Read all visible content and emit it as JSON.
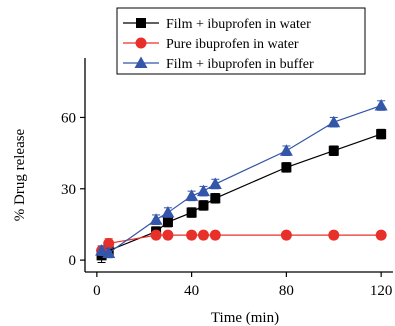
{
  "chart_data": {
    "type": "line",
    "title": "",
    "xlabel": "Time (min)",
    "ylabel": "% Drug release",
    "xlim": [
      -5,
      125
    ],
    "ylim": [
      -5,
      85
    ],
    "xticks": [
      0,
      40,
      80,
      120
    ],
    "yticks": [
      0,
      30,
      60
    ],
    "grid": false,
    "legend_position": "top-right",
    "series": [
      {
        "name": "Film + ibuprofen in water",
        "color": "#000000",
        "marker": "square",
        "x": [
          2,
          5,
          25,
          30,
          40,
          45,
          50,
          80,
          100,
          120
        ],
        "y": [
          2,
          4,
          12,
          16,
          20,
          23,
          26,
          39,
          46,
          53
        ],
        "error": [
          3,
          2,
          2,
          2,
          2,
          2,
          2,
          2,
          2,
          2
        ]
      },
      {
        "name": "Pure ibuprofen in water",
        "color": "#e8302a",
        "marker": "circle",
        "x": [
          2,
          5,
          25,
          30,
          40,
          45,
          50,
          80,
          100,
          120
        ],
        "y": [
          4,
          7,
          10.5,
          10.5,
          10.5,
          10.5,
          10.5,
          10.5,
          10.5,
          10.5
        ],
        "error": [
          1,
          2,
          1.5,
          1.5,
          1.5,
          1.5,
          1.5,
          1.5,
          1.5,
          1.5
        ]
      },
      {
        "name": "Film + ibuprofen in buffer",
        "color": "#3355aa",
        "marker": "triangle",
        "x": [
          2,
          5,
          25,
          30,
          40,
          45,
          50,
          80,
          100,
          120
        ],
        "y": [
          4,
          3,
          17,
          20,
          27,
          29,
          32,
          46,
          58,
          65
        ],
        "error": [
          2,
          2,
          2,
          2,
          2,
          2,
          2,
          2,
          2,
          2
        ]
      }
    ]
  }
}
